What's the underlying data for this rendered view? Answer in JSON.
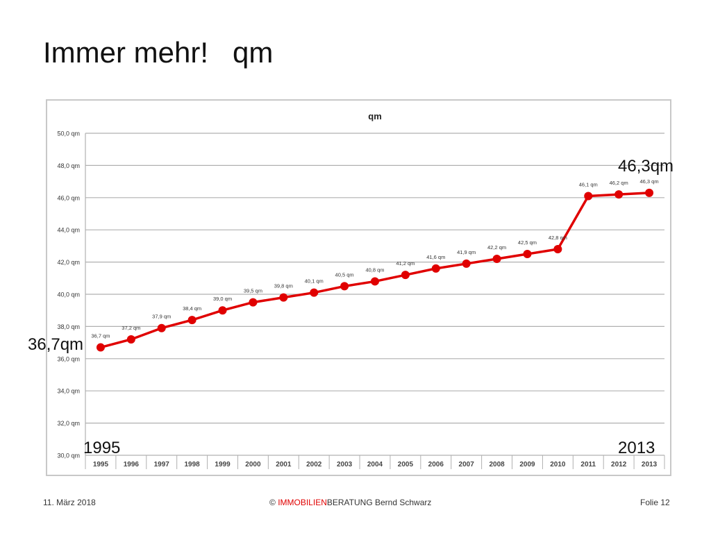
{
  "slide": {
    "title": "Immer mehr!   qm"
  },
  "callouts": {
    "end_value": "46,3qm",
    "start_value": "36,7qm",
    "start_year": "1995",
    "end_year": "2013"
  },
  "footer": {
    "date": "11. März 2018",
    "copyright_symbol": "©",
    "brand": "IMMOBILIEN",
    "brand_rest": "BERATUNG  Bernd Schwarz",
    "page": "Folie 12"
  },
  "colors": {
    "series": "#e00000",
    "brand": "#e00000",
    "grid": "#b0b0b0",
    "frame": "#c8c8c8"
  },
  "chart_data": {
    "type": "line",
    "title": "qm",
    "categories": [
      "1995",
      "1996",
      "1997",
      "1998",
      "1999",
      "2000",
      "2001",
      "2002",
      "2003",
      "2004",
      "2005",
      "2006",
      "2007",
      "2008",
      "2009",
      "2010",
      "2011",
      "2012",
      "2013"
    ],
    "values": [
      36.7,
      37.2,
      37.9,
      38.4,
      39.0,
      39.5,
      39.8,
      40.1,
      40.5,
      40.8,
      41.2,
      41.6,
      41.9,
      42.2,
      42.5,
      42.8,
      46.1,
      46.2,
      46.3
    ],
    "data_labels": [
      "36,7 qm",
      "37,2 qm",
      "37,9 qm",
      "38,4 qm",
      "39,0 qm",
      "39,5 qm",
      "39,8 qm",
      "40,1 qm",
      "40,5 qm",
      "40,8 qm",
      "41,2 qm",
      "41,6 qm",
      "41,9 qm",
      "42,2 qm",
      "42,5 qm",
      "42,8 qm",
      "46,1 qm",
      "46,2 qm",
      "46,3 qm"
    ],
    "ylim": [
      30,
      50
    ],
    "y_ticks": [
      30,
      32,
      34,
      36,
      38,
      40,
      42,
      44,
      46,
      48,
      50
    ],
    "y_tick_labels": [
      "30,0 qm",
      "32,0 qm",
      "34,0 qm",
      "36,0 qm",
      "38,0 qm",
      "40,0 qm",
      "42,0 qm",
      "44,0 qm",
      "46,0 qm",
      "48,0 qm",
      "50,0 qm"
    ],
    "xlabel": "",
    "ylabel": "",
    "grid": true,
    "legend": "none"
  }
}
